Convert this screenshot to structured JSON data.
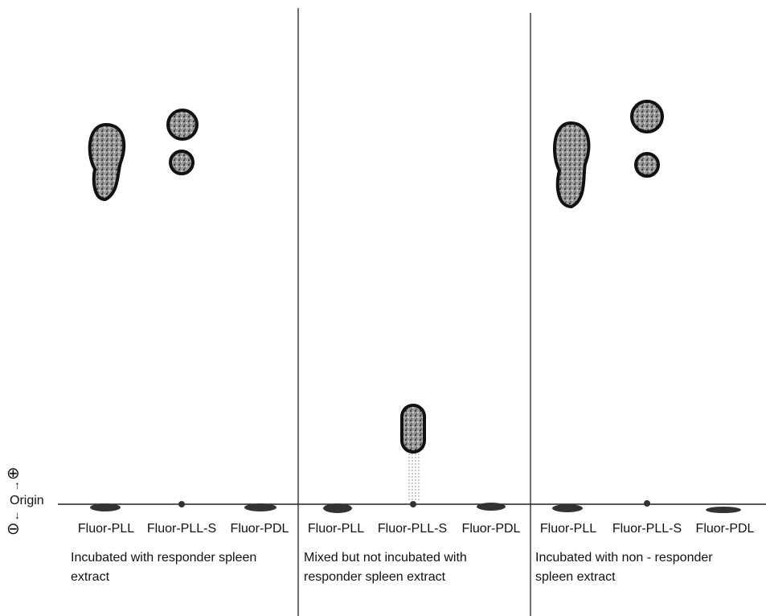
{
  "axis": {
    "plus": "⊕",
    "origin": "Origin",
    "minus": "⊖"
  },
  "panels": [
    {
      "lanes": [
        "Fluor-PLL",
        "Fluor-PLL-S",
        "Fluor-PDL"
      ],
      "caption": [
        "Incubated with responder spleen",
        "extract"
      ]
    },
    {
      "lanes": [
        "Fluor-PLL",
        "Fluor-PLL-S",
        "Fluor-PDL"
      ],
      "caption": [
        "Mixed but not incubated with",
        "responder spleen extract"
      ]
    },
    {
      "lanes": [
        "Fluor-PLL",
        "Fluor-PLL-S",
        "Fluor-PDL"
      ],
      "caption": [
        "Incubated with non - responder",
        "spleen extract"
      ]
    }
  ]
}
